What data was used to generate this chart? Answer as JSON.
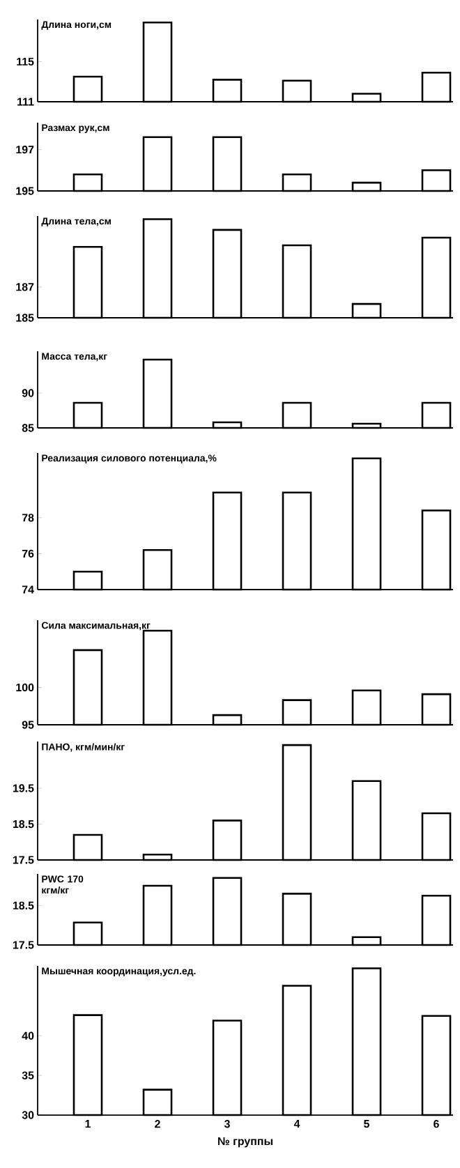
{
  "chart_data": [
    {
      "type": "bar",
      "title": "Длина ноги,см",
      "categories": [
        "1",
        "2",
        "3",
        "4",
        "5",
        "6"
      ],
      "values": [
        113.5,
        118.9,
        113.2,
        113.1,
        111.8,
        113.9
      ],
      "color": "#000000",
      "ylim": [
        111,
        119.2
      ],
      "yticks": [
        111,
        115
      ],
      "tick_labels": "y"
    },
    {
      "type": "bar",
      "title": "Размах рук,см",
      "categories": [
        "1",
        "2",
        "3",
        "4",
        "5",
        "6"
      ],
      "values": [
        195.8,
        197.6,
        197.6,
        195.8,
        195.4,
        196.0
      ],
      "color": "#000000",
      "ylim": [
        195,
        198.3
      ],
      "yticks": [
        195,
        197
      ],
      "tick_labels": "y"
    },
    {
      "type": "bar",
      "title": "Длина тела,см",
      "categories": [
        "1",
        "2",
        "3",
        "4",
        "5",
        "6"
      ],
      "values": [
        189.6,
        191.4,
        190.7,
        189.7,
        185.9,
        190.2
      ],
      "color": "#000000",
      "ylim": [
        185,
        191.6
      ],
      "yticks": [
        185,
        187
      ],
      "tick_labels": "y"
    },
    {
      "type": "bar",
      "title": "Масса тела,кг",
      "categories": [
        "1",
        "2",
        "3",
        "4",
        "5",
        "6"
      ],
      "values": [
        88.6,
        94.8,
        85.8,
        88.6,
        85.6,
        88.6
      ],
      "color": "#000000",
      "ylim": [
        85,
        96
      ],
      "yticks": [
        85,
        90
      ],
      "tick_labels": "y"
    },
    {
      "type": "bar",
      "title": "Реализация силового потенциала,%",
      "categories": [
        "1",
        "2",
        "3",
        "4",
        "5",
        "6"
      ],
      "values": [
        75.0,
        76.2,
        79.4,
        79.4,
        81.3,
        78.4
      ],
      "color": "#000000",
      "ylim": [
        74,
        81.6
      ],
      "yticks": [
        74,
        76,
        78
      ],
      "tick_labels": "y"
    },
    {
      "type": "bar",
      "title": "Сила максимальная,кг",
      "categories": [
        "1",
        "2",
        "3",
        "4",
        "5",
        "6"
      ],
      "values": [
        105.0,
        107.6,
        96.3,
        98.3,
        99.6,
        99.1
      ],
      "color": "#000000",
      "ylim": [
        95,
        109
      ],
      "yticks": [
        95,
        100
      ],
      "tick_labels": "y"
    },
    {
      "type": "bar",
      "title": "ПАНО, кгм/мин/кг",
      "categories": [
        "1",
        "2",
        "3",
        "4",
        "5",
        "6"
      ],
      "values": [
        18.2,
        17.65,
        18.6,
        20.7,
        19.7,
        18.8
      ],
      "color": "#000000",
      "ylim": [
        17.5,
        20.8
      ],
      "yticks": [
        17.5,
        18.5,
        19.5
      ],
      "tick_labels": "y"
    },
    {
      "type": "bar",
      "title": "PWC 170 кгм/кг",
      "categories": [
        "1",
        "2",
        "3",
        "4",
        "5",
        "6"
      ],
      "values": [
        18.07,
        19.0,
        19.2,
        18.8,
        17.7,
        18.75
      ],
      "color": "#000000",
      "ylim": [
        17.5,
        19.3
      ],
      "yticks": [
        17.5,
        18.5
      ],
      "tick_labels": "y"
    },
    {
      "type": "bar",
      "title": "Мышечная координация,усл.ед.",
      "xlabel": "№ группы",
      "categories": [
        "1",
        "2",
        "3",
        "4",
        "5",
        "6"
      ],
      "values": [
        42.6,
        33.2,
        41.9,
        46.3,
        48.5,
        42.5
      ],
      "color": "#000000",
      "ylim": [
        30,
        48.8
      ],
      "yticks": [
        30,
        35,
        40
      ]
    }
  ]
}
